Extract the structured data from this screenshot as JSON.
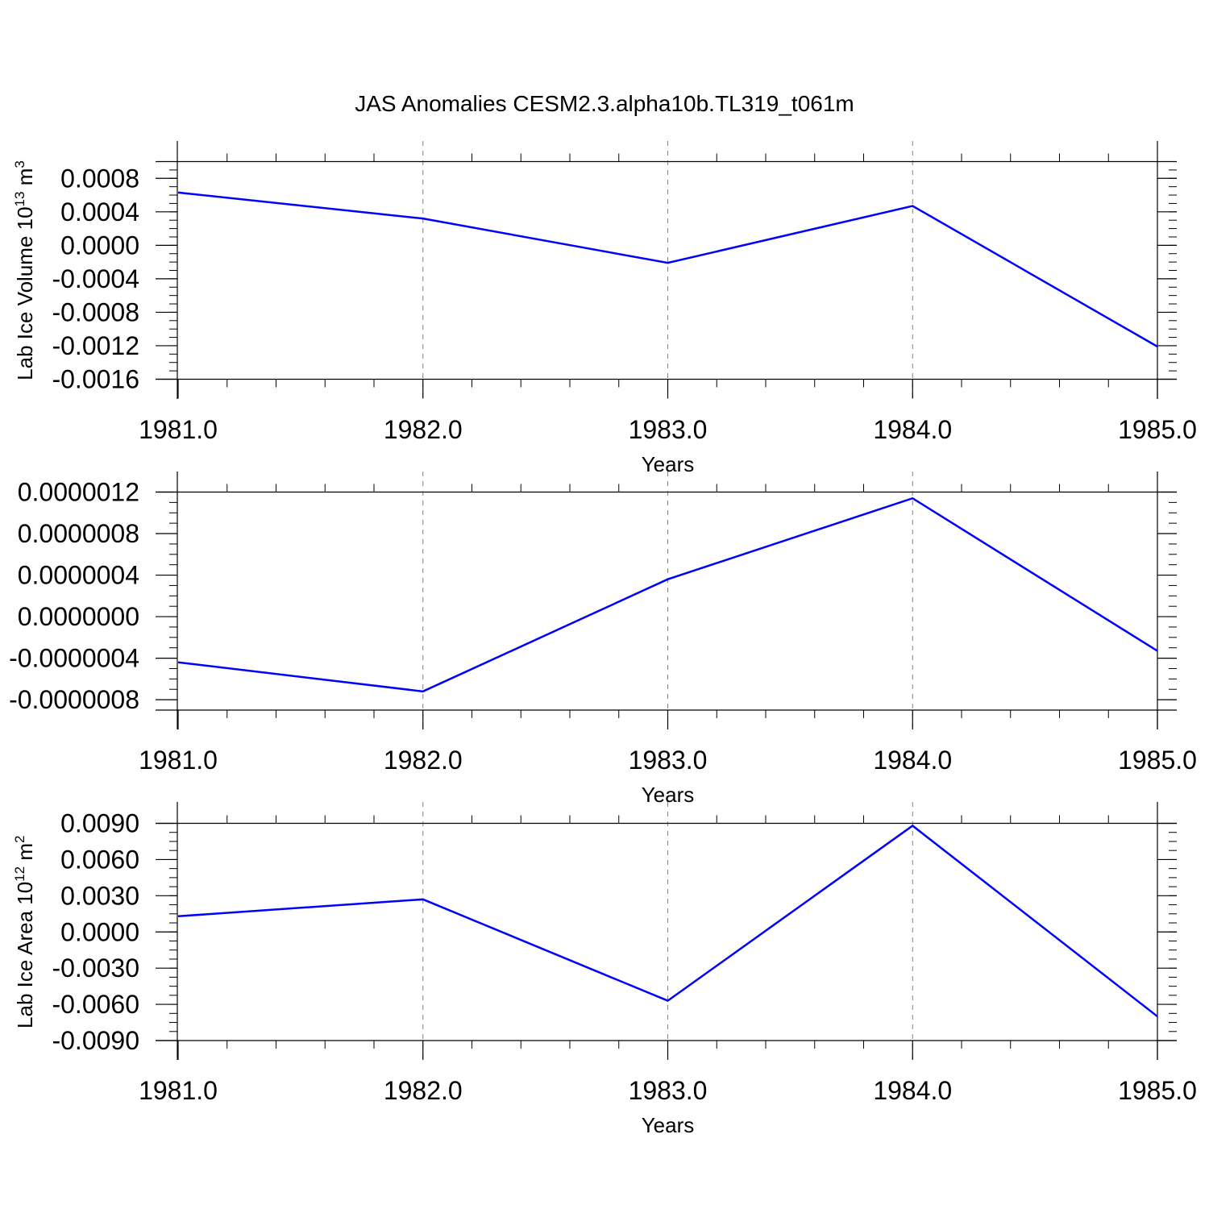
{
  "title": "JAS Anomalies CESM2.3.alpha10b.TL319_t061m",
  "chart_data": [
    {
      "type": "line",
      "x": [
        1981.0,
        1982.0,
        1983.0,
        1984.0,
        1985.0
      ],
      "xlim": [
        1981.0,
        1985.0
      ],
      "xticks": [
        "1981.0",
        "1982.0",
        "1983.0",
        "1984.0",
        "1985.0"
      ],
      "xlabel": "Years",
      "ylabel": {
        "text": "Lab Ice Volume 10",
        "sup": "13",
        "unit": " m",
        "unit_sup": "3"
      },
      "ylim": [
        -0.0016,
        0.001
      ],
      "yticks": [
        0.0008,
        0.0004,
        0.0,
        -0.0004,
        -0.0008,
        -0.0012,
        -0.0016
      ],
      "yticklabels": [
        "0.0008",
        "0.0004",
        "0.0000",
        "-0.0004",
        "-0.0008",
        "-0.0012",
        "-0.0016"
      ],
      "series": [
        {
          "values": [
            0.00063,
            0.00032,
            -0.00021,
            0.00047,
            -0.00121
          ]
        }
      ],
      "line_color": "#0000ff",
      "grid": "vertical dashed at major x ticks"
    },
    {
      "type": "line",
      "x": [
        1981.0,
        1982.0,
        1983.0,
        1984.0,
        1985.0
      ],
      "xlim": [
        1981.0,
        1985.0
      ],
      "xticks": [
        "1981.0",
        "1982.0",
        "1983.0",
        "1984.0",
        "1985.0"
      ],
      "xlabel": "Years",
      "ylabel": null,
      "ylim": [
        -9e-07,
        1.2e-06
      ],
      "yticks": [
        1.2e-06,
        8e-07,
        4e-07,
        0.0,
        -4e-07,
        -8e-07
      ],
      "yticklabels": [
        "0.0000012",
        "0.0000008",
        "0.0000004",
        "0.0000000",
        "-0.0000004",
        "-0.0000008"
      ],
      "series": [
        {
          "values": [
            -4.4e-07,
            -7.2e-07,
            3.6e-07,
            1.14e-06,
            -3.3e-07
          ]
        }
      ],
      "line_color": "#0000ff",
      "grid": "vertical dashed at major x ticks"
    },
    {
      "type": "line",
      "x": [
        1981.0,
        1982.0,
        1983.0,
        1984.0,
        1985.0
      ],
      "xlim": [
        1981.0,
        1985.0
      ],
      "xticks": [
        "1981.0",
        "1982.0",
        "1983.0",
        "1984.0",
        "1985.0"
      ],
      "xlabel": "Years",
      "ylabel": {
        "text": "Lab Ice Area 10",
        "sup": "12",
        "unit": " m",
        "unit_sup": "2"
      },
      "ylim": [
        -0.009,
        0.009
      ],
      "yticks": [
        0.009,
        0.006,
        0.003,
        0.0,
        -0.003,
        -0.006,
        -0.009
      ],
      "yticklabels": [
        "0.0090",
        "0.0060",
        "0.0030",
        "0.0000",
        "-0.0030",
        "-0.0060",
        "-0.0090"
      ],
      "series": [
        {
          "values": [
            0.0013,
            0.0027,
            -0.0057,
            0.0088,
            -0.007
          ]
        }
      ],
      "line_color": "#0000ff",
      "grid": "vertical dashed at major x ticks"
    }
  ]
}
